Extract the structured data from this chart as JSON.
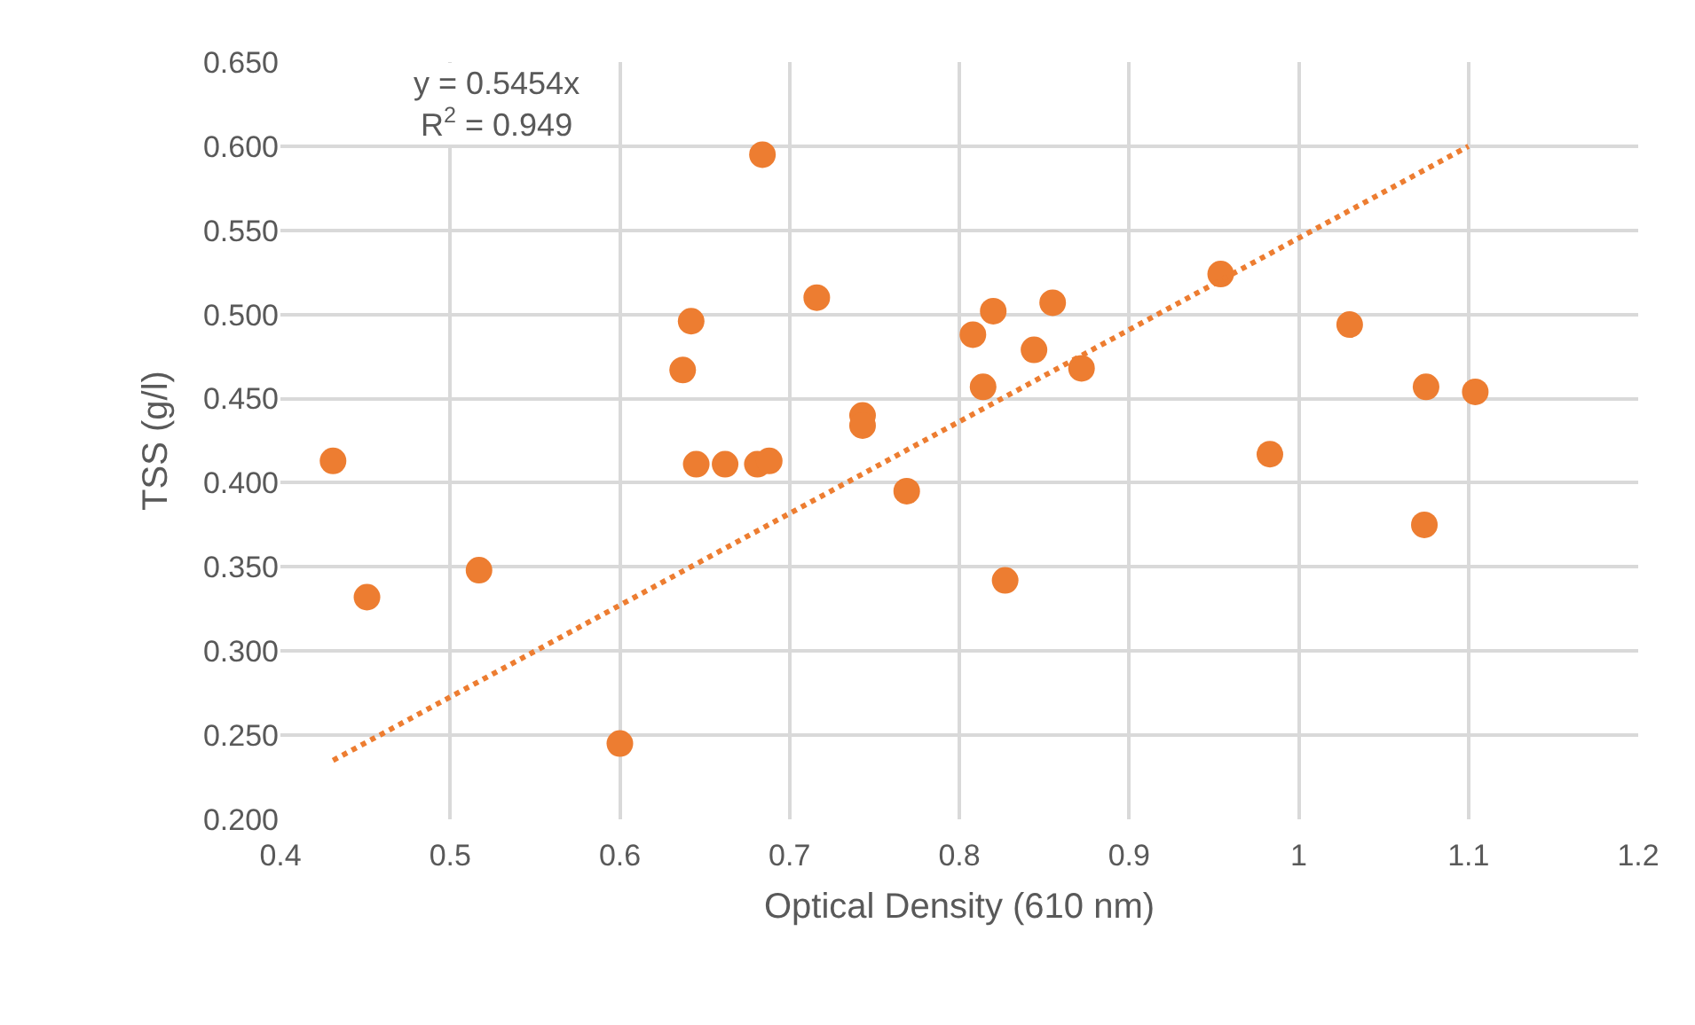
{
  "chart_data": {
    "type": "scatter",
    "xlabel": "Optical Density (610 nm)",
    "ylabel": "TSS (g/l)",
    "annotations": [
      "y = 0.5454x\nR$^{2}$ = 0.949"
    ],
    "xlim": [
      0.4,
      1.2
    ],
    "xticks": [
      0.4,
      0.5,
      0.6,
      0.7,
      0.8,
      0.9,
      1,
      1.1,
      1.2
    ],
    "ylim": [
      0.2,
      0.65
    ],
    "yticks": [
      {
        "value": 0.2,
        "label": "0.200"
      },
      {
        "value": 0.25,
        "label": "0.250"
      },
      {
        "value": 0.3,
        "label": "0.300"
      },
      {
        "value": 0.35,
        "label": "0.350"
      },
      {
        "value": 0.4,
        "label": "0.400"
      },
      {
        "value": 0.45,
        "label": "0.450"
      },
      {
        "value": 0.5,
        "label": "0.500"
      },
      {
        "value": 0.55,
        "label": "0.550"
      },
      {
        "value": 0.6,
        "label": "0.600"
      },
      {
        "value": 0.65,
        "label": "0.650"
      }
    ],
    "grid": true,
    "marker": "circle",
    "series": [
      {
        "color": "#ed7d31",
        "x": [
          0.431,
          0.451,
          0.517,
          0.6,
          0.637,
          0.642,
          0.645,
          0.662,
          0.681,
          0.688,
          0.684,
          0.716,
          0.743,
          0.743,
          0.769,
          0.808,
          0.82,
          0.814,
          0.827,
          0.844,
          0.855,
          0.872,
          0.954,
          0.983,
          1.03,
          1.075,
          1.074,
          1.104
        ],
        "values": [
          0.413,
          0.332,
          0.348,
          0.245,
          0.467,
          0.496,
          0.411,
          0.411,
          0.411,
          0.413,
          0.595,
          0.51,
          0.44,
          0.434,
          0.395,
          0.488,
          0.502,
          0.457,
          0.342,
          0.479,
          0.507,
          0.468,
          0.524,
          0.417,
          0.494,
          0.457,
          0.375,
          0.454
        ]
      },
      {
        "type": "line",
        "color": "#ed7d31",
        "marker": "none",
        "line_style": "dotted",
        "x": [
          0.431,
          1.1
        ],
        "values": [
          0.235,
          0.6
        ]
      }
    ]
  }
}
